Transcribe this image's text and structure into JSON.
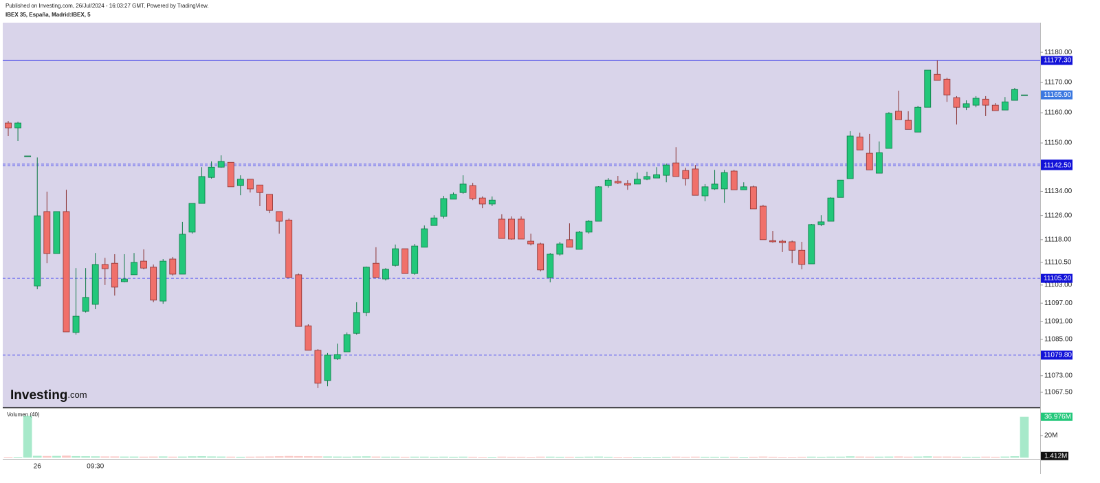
{
  "chart_data": {
    "type": "candlestick",
    "header": "Published on Investing.com, 26/Jul/2024 - 16:03:27 GMT, Powered by TradingView.",
    "title": "IBEX 35, España, Madrid:IBEX, 5",
    "watermark": "Investing",
    "watermark_suffix": ".com",
    "categories": [
      null,
      null,
      null,
      "26",
      null,
      null,
      null,
      null,
      null,
      "09:30",
      null,
      null,
      null,
      null,
      null,
      null,
      null,
      null,
      null,
      null,
      null,
      null,
      null,
      null,
      null,
      null,
      null,
      null,
      null,
      null,
      null,
      null,
      null,
      null,
      null,
      null,
      null,
      null,
      null,
      null,
      null,
      null,
      null,
      null,
      null,
      null,
      null,
      null,
      null,
      null,
      null,
      null,
      null,
      null,
      null,
      null,
      null,
      null,
      null,
      null,
      null,
      null,
      null,
      null,
      null,
      null,
      null,
      null,
      null,
      null,
      null,
      null,
      null,
      null,
      null,
      null,
      null,
      null,
      null,
      null,
      null,
      null,
      null,
      null,
      null,
      null,
      null,
      null,
      null,
      null,
      null,
      null,
      null,
      null,
      null,
      null,
      null,
      null,
      null,
      null,
      null,
      null,
      null,
      null,
      null,
      null
    ],
    "open": [
      11156.6,
      11155,
      11145.7,
      11102.7,
      11127.3,
      11113.4,
      11127.3,
      11087.3,
      11094.3,
      11096.6,
      11109.8,
      11110.2,
      11104.1,
      11106.4,
      11110.9,
      11108.9,
      11097.7,
      11111.6,
      11106.6,
      11120.5,
      11130,
      11138.6,
      11142,
      11143.6,
      11135.9,
      11138,
      11136.1,
      11133,
      11127.3,
      11124.5,
      11106.4,
      11089.5,
      11081.4,
      11071.4,
      11078.6,
      11080.9,
      11087,
      11093.9,
      11110.2,
      11105,
      11109.5,
      11115,
      11106.8,
      11115.5,
      11122.7,
      11125.7,
      11131.4,
      11133.6,
      11135.9,
      11131.8,
      11129.8,
      11124.8,
      11124.8,
      11124.8,
      11117.5,
      11116.6,
      11105.5,
      11113.2,
      11118,
      11114.8,
      11120.5,
      11124.1,
      11135.9,
      11137.3,
      11136.6,
      11136.4,
      11138,
      11138.4,
      11139.3,
      11143.4,
      11140.9,
      11141.4,
      11132.5,
      11134.8,
      11134.8,
      11140.7,
      11134.5,
      11135.5,
      11129.1,
      11117.7,
      11117.5,
      11117.3,
      11114.5,
      11110,
      11123,
      11124.1,
      11132,
      11138.2,
      11152,
      11146.6,
      11140,
      11148.2,
      11160.5,
      11157.5,
      11153.6,
      11161.8,
      11172.7,
      11171.1,
      11165,
      11161.8,
      11162.5,
      11164.5,
      11162.5,
      11160.9,
      11164.1,
      11165.9
    ],
    "high": [
      11157.3,
      11157,
      11145.7,
      11145.2,
      11133.9,
      11127.3,
      11134.5,
      11108.6,
      11108.6,
      11113.6,
      11112,
      11113.2,
      11113.2,
      11113.6,
      11114.8,
      11109.8,
      11111.6,
      11112.3,
      11123.9,
      11130,
      11142,
      11143.9,
      11145.9,
      11143.6,
      11139.3,
      11138,
      11136.1,
      11133,
      11127.3,
      11125,
      11106.8,
      11090,
      11081.8,
      11080.5,
      11083.6,
      11087.3,
      11097.3,
      11109.1,
      11115.5,
      11108.6,
      11116.4,
      11115,
      11116.6,
      11122.7,
      11126.1,
      11132.5,
      11133.6,
      11139.3,
      11136.8,
      11132.3,
      11132.3,
      11126.4,
      11125.7,
      11125.7,
      11120,
      11117,
      11113.6,
      11117.3,
      11123.4,
      11120.9,
      11124.5,
      11135.7,
      11138.4,
      11139.1,
      11137.7,
      11140.2,
      11140.5,
      11142,
      11143.2,
      11148.6,
      11141.8,
      11142.7,
      11136.4,
      11141.1,
      11141.1,
      11141.1,
      11137,
      11135.9,
      11129.5,
      11120.9,
      11118,
      11117.7,
      11117.3,
      11123.2,
      11126.1,
      11132,
      11137.7,
      11153.9,
      11153.4,
      11153,
      11150.5,
      11160.2,
      11167.3,
      11160.5,
      11162.3,
      11174.1,
      11177.3,
      11171.6,
      11165.5,
      11164.1,
      11165.5,
      11165.5,
      11163.2,
      11165.2,
      11168.2,
      11165.9
    ],
    "low": [
      11152.3,
      11150.7,
      11145.7,
      11101.6,
      11110.2,
      11113.4,
      11087.5,
      11086.6,
      11093.9,
      11095,
      11103,
      11099.5,
      11103.9,
      11106.4,
      11108.2,
      11097.3,
      11096.8,
      11106.1,
      11106.6,
      11120,
      11130,
      11138.2,
      11141.8,
      11135.5,
      11132.7,
      11133.6,
      11129.1,
      11126.8,
      11120,
      11105.5,
      11089.3,
      11081.4,
      11068.9,
      11069.5,
      11078.2,
      11080.9,
      11086.6,
      11092.7,
      11105.5,
      11104.5,
      11109.1,
      11106.8,
      11106.4,
      11115.5,
      11122.7,
      11125,
      11131.4,
      11133.2,
      11131.1,
      11128.4,
      11129.1,
      11118.4,
      11118,
      11118.2,
      11116.1,
      11107.5,
      11103.9,
      11112.7,
      11115.5,
      11114.8,
      11120,
      11124.1,
      11135.2,
      11136.4,
      11134.5,
      11136.4,
      11137.7,
      11138.4,
      11137,
      11138.9,
      11135.9,
      11132.7,
      11130.7,
      11134.5,
      11130.2,
      11134.5,
      11134.5,
      11128.2,
      11118,
      11117,
      11113.9,
      11110.2,
      11108.2,
      11110,
      11122.5,
      11124.1,
      11132,
      11138.2,
      11147.7,
      11141.1,
      11140,
      11148.2,
      11157.7,
      11154.5,
      11153.6,
      11161.8,
      11170.7,
      11163.6,
      11156.1,
      11160.9,
      11161.8,
      11158.9,
      11160.7,
      11160.9,
      11164.1,
      11165.9
    ],
    "close": [
      11155,
      11156.6,
      11145.7,
      11125.9,
      11113.4,
      11127.3,
      11087.5,
      11092.7,
      11098.9,
      11109.8,
      11108.4,
      11102.3,
      11105,
      11110.5,
      11108.6,
      11098,
      11110.9,
      11106.6,
      11119.8,
      11130,
      11138.9,
      11142,
      11143.9,
      11135.5,
      11138,
      11134.8,
      11133.6,
      11127.7,
      11124.1,
      11105.5,
      11089.3,
      11081.4,
      11070.5,
      11079.8,
      11080,
      11086.6,
      11093.9,
      11108.9,
      11105.5,
      11108.2,
      11115,
      11106.8,
      11115.9,
      11121.6,
      11125.2,
      11131.6,
      11133,
      11136.4,
      11131.6,
      11129.8,
      11131.1,
      11118.4,
      11118.2,
      11118.2,
      11116.6,
      11108,
      11113.2,
      11116.6,
      11115.5,
      11120.5,
      11124.1,
      11135.5,
      11137.7,
      11136.8,
      11136.1,
      11138,
      11138.9,
      11139.5,
      11142.7,
      11138.9,
      11138.2,
      11132.7,
      11135.5,
      11136.4,
      11140.2,
      11134.5,
      11135.5,
      11128.2,
      11118,
      11117.3,
      11117,
      11114.5,
      11109.8,
      11123,
      11123.9,
      11131.8,
      11137.7,
      11152.3,
      11147.7,
      11141.1,
      11146.8,
      11159.8,
      11157.7,
      11154.5,
      11161.8,
      11174.1,
      11170.7,
      11165.9,
      11161.8,
      11163,
      11164.8,
      11162.5,
      11160.7,
      11163.6,
      11167.7,
      11165.9
    ],
    "up_color": "#22c77a",
    "down_color": "#f0706a",
    "ylim": [
      11062.5,
      11189.8
    ],
    "yticks": [
      {
        "value": 11180,
        "label": "11180.00"
      },
      {
        "value": 11170,
        "label": "11170.00"
      },
      {
        "value": 11160,
        "label": "11160.00"
      },
      {
        "value": 11150,
        "label": "11150.00"
      },
      {
        "value": 11134,
        "label": "11134.00"
      },
      {
        "value": 11126,
        "label": "11126.00"
      },
      {
        "value": 11118,
        "label": "11118.00"
      },
      {
        "value": 11110.5,
        "label": "11110.50"
      },
      {
        "value": 11103,
        "label": "11103.00"
      },
      {
        "value": 11097,
        "label": "11097.00"
      },
      {
        "value": 11091,
        "label": "11091.00"
      },
      {
        "value": 11085,
        "label": "11085.00"
      },
      {
        "value": 11073,
        "label": "11073.00"
      },
      {
        "value": 11067.5,
        "label": "11067.50"
      }
    ],
    "levels": [
      {
        "value": 11177.3,
        "label": "11177.30",
        "style": "solid"
      },
      {
        "value": 11143,
        "label": "11143.00",
        "style": "dashed"
      },
      {
        "value": 11142.5,
        "label": "11142.50",
        "style": "dashed"
      },
      {
        "value": 11105.2,
        "label": "11105.20",
        "style": "dashed"
      },
      {
        "value": 11079.8,
        "label": "11079.80",
        "style": "dashed"
      }
    ],
    "last_price": {
      "value": 11165.9,
      "label": "11165.90"
    },
    "volume_title": "Volumen (40)",
    "volume": [
      0.6,
      0.6,
      38,
      1.6,
      1.4,
      1.5,
      1.8,
      1.3,
      1.2,
      1.1,
      1.0,
      1.0,
      0.9,
      0.9,
      0.8,
      0.9,
      1.0,
      0.8,
      0.9,
      1.1,
      1.2,
      1.0,
      0.9,
      0.8,
      0.7,
      0.8,
      0.9,
      1.0,
      1.2,
      1.4,
      1.3,
      1.2,
      1.1,
      1.0,
      0.9,
      0.8,
      1.0,
      1.1,
      0.9,
      0.8,
      0.8,
      0.7,
      0.8,
      0.8,
      0.7,
      0.8,
      0.7,
      0.8,
      0.7,
      0.6,
      0.6,
      0.8,
      0.7,
      0.7,
      0.6,
      0.8,
      0.8,
      0.7,
      0.7,
      0.7,
      0.8,
      0.9,
      0.7,
      0.6,
      0.6,
      0.6,
      0.6,
      0.6,
      0.7,
      0.8,
      0.7,
      0.8,
      0.7,
      0.7,
      0.7,
      0.7,
      0.6,
      0.7,
      0.9,
      0.7,
      0.6,
      0.6,
      0.7,
      0.8,
      0.7,
      0.8,
      0.8,
      1.1,
      0.9,
      0.8,
      0.8,
      0.9,
      1.0,
      0.8,
      0.9,
      1.1,
      0.9,
      0.9,
      0.8,
      0.7,
      0.7,
      0.8,
      0.7,
      0.9,
      1.2,
      36.976
    ],
    "volume_last_label": "36.976M",
    "volume_ma": {
      "value": 1.412,
      "label": "1.412M"
    },
    "volume_ylim": [
      0,
      43
    ],
    "volume_yticks": [
      {
        "value": 20,
        "label": "20M"
      }
    ]
  }
}
